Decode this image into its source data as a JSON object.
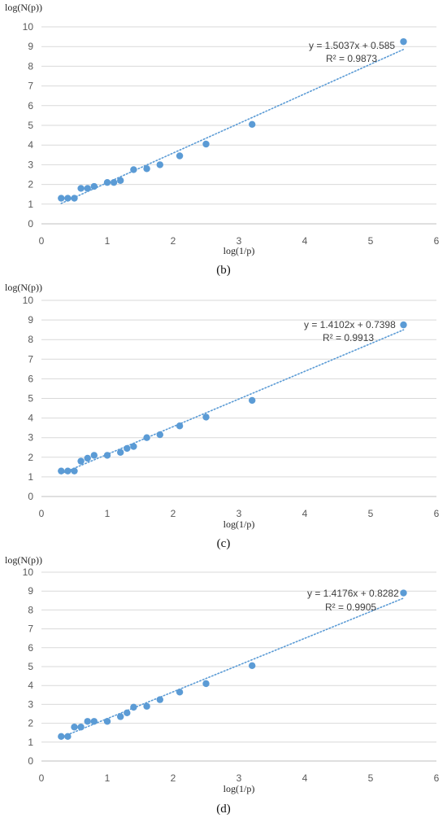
{
  "chart_data": [
    {
      "panel": "(b)",
      "type": "scatter",
      "xlabel": "log(1/p)",
      "ylabel": "log(N(p))",
      "xlim": [
        0,
        6
      ],
      "ylim": [
        0,
        10
      ],
      "xticks": [
        "0",
        "1",
        "2",
        "3",
        "4",
        "5",
        "6"
      ],
      "yticks": [
        "0",
        "1",
        "2",
        "3",
        "4",
        "5",
        "6",
        "7",
        "8",
        "9",
        "10"
      ],
      "grid": "horizontal",
      "legend": "none",
      "marker_color": "#5b9bd5",
      "trendline": {
        "type": "linear",
        "slope": 1.5037,
        "intercept": 0.585,
        "x_range": [
          0.3,
          5.5
        ],
        "style": "dotted",
        "color": "#5b9bd5"
      },
      "equation": "y = 1.5037x + 0.585",
      "r_squared": "R² = 0.9873",
      "x": [
        0.3,
        0.4,
        0.5,
        0.6,
        0.7,
        0.8,
        1.0,
        1.1,
        1.2,
        1.4,
        1.6,
        1.8,
        2.1,
        2.5,
        3.2,
        5.5
      ],
      "y": [
        1.3,
        1.3,
        1.3,
        1.8,
        1.8,
        1.9,
        2.1,
        2.1,
        2.2,
        2.75,
        2.8,
        3.0,
        3.45,
        4.05,
        5.05,
        9.25
      ]
    },
    {
      "panel": "(c)",
      "type": "scatter",
      "xlabel": "log(1/p)",
      "ylabel": "log(N(p))",
      "xlim": [
        0,
        6
      ],
      "ylim": [
        0,
        10
      ],
      "xticks": [
        "0",
        "1",
        "2",
        "3",
        "4",
        "5",
        "6"
      ],
      "yticks": [
        "0",
        "1",
        "2",
        "3",
        "4",
        "5",
        "6",
        "7",
        "8",
        "9",
        "10"
      ],
      "grid": "horizontal",
      "legend": "none",
      "marker_color": "#5b9bd5",
      "trendline": {
        "type": "linear",
        "slope": 1.4102,
        "intercept": 0.7398,
        "x_range": [
          0.3,
          5.5
        ],
        "style": "dotted",
        "color": "#5b9bd5"
      },
      "equation": "y = 1.4102x + 0.7398",
      "r_squared": "R² = 0.9913",
      "x": [
        0.3,
        0.4,
        0.5,
        0.6,
        0.7,
        0.8,
        1.0,
        1.2,
        1.3,
        1.4,
        1.6,
        1.8,
        2.1,
        2.5,
        3.2,
        5.5
      ],
      "y": [
        1.3,
        1.3,
        1.3,
        1.8,
        1.95,
        2.1,
        2.1,
        2.25,
        2.45,
        2.55,
        3.0,
        3.15,
        3.6,
        4.05,
        4.9,
        8.75
      ]
    },
    {
      "panel": "(d)",
      "type": "scatter",
      "xlabel": "log(1/p)",
      "ylabel": "log(N(p))",
      "xlim": [
        0,
        6
      ],
      "ylim": [
        0,
        10
      ],
      "xticks": [
        "0",
        "1",
        "2",
        "3",
        "4",
        "5",
        "6"
      ],
      "yticks": [
        "0",
        "1",
        "2",
        "3",
        "4",
        "5",
        "6",
        "7",
        "8",
        "9",
        "10"
      ],
      "grid": "horizontal",
      "legend": "none",
      "marker_color": "#5b9bd5",
      "trendline": {
        "type": "linear",
        "slope": 1.4176,
        "intercept": 0.8282,
        "x_range": [
          0.3,
          5.5
        ],
        "style": "dotted",
        "color": "#5b9bd5"
      },
      "equation": "y = 1.4176x + 0.8282",
      "r_squared": "R² = 0.9905",
      "x": [
        0.3,
        0.4,
        0.5,
        0.6,
        0.7,
        0.8,
        1.0,
        1.2,
        1.3,
        1.4,
        1.6,
        1.8,
        2.1,
        2.5,
        3.2,
        5.5
      ],
      "y": [
        1.3,
        1.3,
        1.8,
        1.8,
        2.1,
        2.1,
        2.1,
        2.35,
        2.55,
        2.85,
        2.9,
        3.25,
        3.65,
        4.1,
        5.05,
        8.9
      ]
    }
  ]
}
